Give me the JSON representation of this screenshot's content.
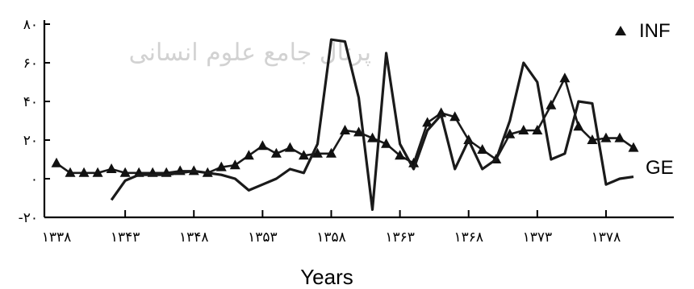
{
  "watermark": "پرتال جامع علوم انسانی",
  "chart_data": {
    "type": "line",
    "title": "",
    "xlabel": "Years",
    "ylabel": "",
    "x_ticks": [
      "۱۳۳۸",
      "۱۳۴۳",
      "۱۳۴۸",
      "۱۳۵۳",
      "۱۳۵۸",
      "۱۳۶۳",
      "۱۳۶۸",
      "۱۳۷۳",
      "۱۳۷۸"
    ],
    "y_ticks": [
      "-۲۰",
      "۰",
      "۲۰",
      "۴۰",
      "۶۰",
      "۸۰"
    ],
    "y_tick_values": [
      -20,
      0,
      20,
      40,
      60,
      80
    ],
    "xlim": [
      1337,
      1385
    ],
    "ylim": [
      -20,
      80
    ],
    "grid": false,
    "legend_position": "top-right",
    "series": [
      {
        "name": "INF",
        "marker": "triangle",
        "x": [
          1338,
          1339,
          1340,
          1341,
          1342,
          1343,
          1344,
          1345,
          1346,
          1347,
          1348,
          1349,
          1350,
          1351,
          1352,
          1353,
          1354,
          1355,
          1356,
          1357,
          1358,
          1359,
          1360,
          1361,
          1362,
          1363,
          1364,
          1365,
          1366,
          1367,
          1368,
          1369,
          1370,
          1371,
          1372,
          1373,
          1374,
          1375,
          1376,
          1377,
          1378,
          1379,
          1380
        ],
        "y": [
          8,
          3,
          3,
          3,
          5,
          3,
          3,
          3,
          3,
          4,
          4,
          3,
          6,
          7,
          12,
          17,
          13,
          16,
          12,
          13,
          13,
          25,
          24,
          21,
          18,
          12,
          8,
          29,
          34,
          32,
          20,
          15,
          10,
          23,
          25,
          25,
          38,
          52,
          27,
          20,
          21,
          21,
          16
        ]
      },
      {
        "name": "GE",
        "marker": "none",
        "x": [
          1342,
          1343,
          1344,
          1345,
          1346,
          1347,
          1348,
          1349,
          1350,
          1351,
          1352,
          1353,
          1354,
          1355,
          1356,
          1357,
          1358,
          1359,
          1360,
          1361,
          1362,
          1363,
          1364,
          1365,
          1366,
          1367,
          1368,
          1369,
          1370,
          1371,
          1372,
          1373,
          1374,
          1375,
          1376,
          1377,
          1378,
          1379,
          1380
        ],
        "y": [
          -11,
          -1,
          2,
          2,
          2,
          3,
          4,
          3,
          2,
          0,
          -6,
          -3,
          0,
          5,
          3,
          18,
          72,
          71,
          42,
          -16,
          65,
          18,
          5,
          25,
          33,
          5,
          20,
          5,
          10,
          30,
          60,
          50,
          10,
          13,
          40,
          39,
          -3,
          0,
          1
        ]
      }
    ]
  }
}
